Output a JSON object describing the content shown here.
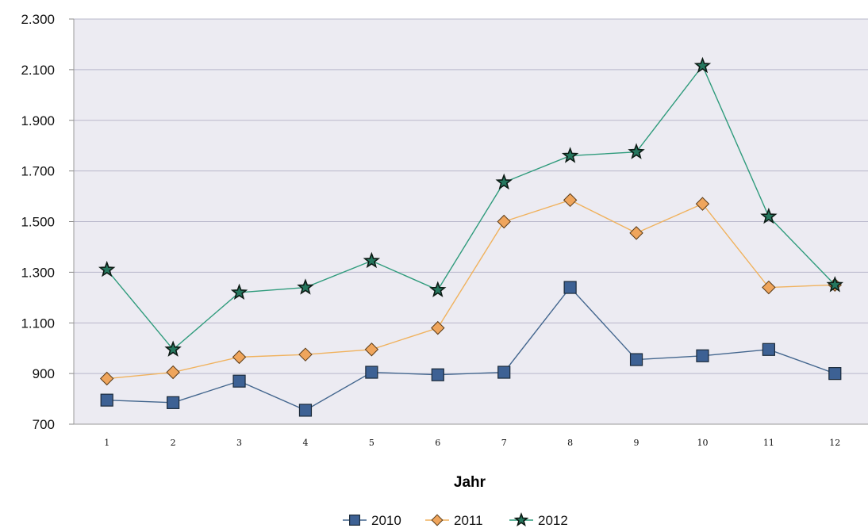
{
  "chart_data": {
    "type": "line",
    "title": "",
    "xlabel": "Jahr",
    "ylabel": "",
    "categories": [
      "1",
      "2",
      "3",
      "4",
      "5",
      "6",
      "7",
      "8",
      "9",
      "10",
      "11",
      "12"
    ],
    "y_ticks": [
      "700",
      "900",
      "1.100",
      "1.300",
      "1.500",
      "1.700",
      "1.900",
      "2.100",
      "2.300"
    ],
    "y_tick_values": [
      700,
      900,
      1100,
      1300,
      1500,
      1700,
      1900,
      2100,
      2300
    ],
    "ylim": [
      700,
      2300
    ],
    "grid": "horizontal",
    "legend_position": "bottom",
    "plot_background": "#ecebf2",
    "grid_color": "#b9b8cb",
    "series": [
      {
        "name": "2010",
        "marker": "square",
        "color": "#43668e",
        "fill": "#3d6194",
        "values": [
          795,
          785,
          870,
          755,
          905,
          895,
          905,
          1240,
          955,
          970,
          995,
          900
        ]
      },
      {
        "name": "2011",
        "marker": "diamond",
        "color": "#f0b25e",
        "fill": "#efa55c",
        "values": [
          880,
          905,
          965,
          975,
          995,
          1080,
          1500,
          1585,
          1455,
          1570,
          1240,
          1250
        ]
      },
      {
        "name": "2012",
        "marker": "star",
        "color": "#2f9b7c",
        "fill": "#25775e",
        "values": [
          1310,
          995,
          1220,
          1240,
          1345,
          1230,
          1655,
          1760,
          1775,
          2115,
          1520,
          1250
        ]
      }
    ]
  }
}
